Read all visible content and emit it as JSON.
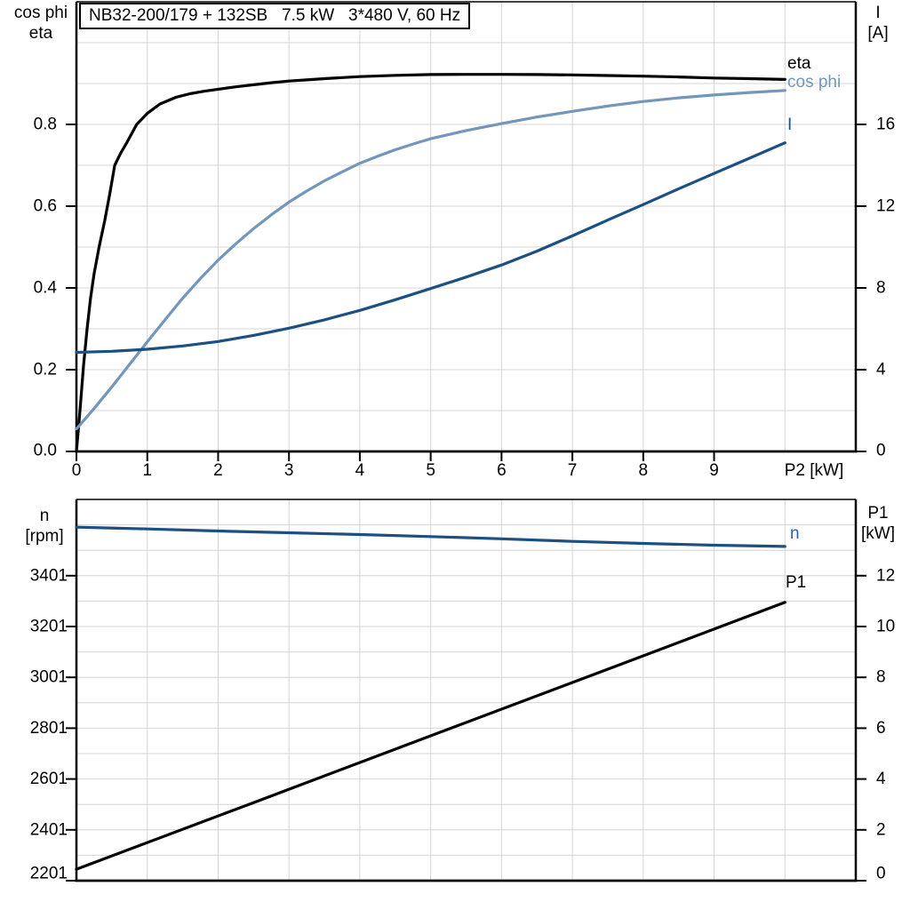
{
  "title_box": {
    "text": "NB32-200/179 + 132SB   7.5 kW   3*480 V, 60 Hz"
  },
  "corner_labels": {
    "top_left": [
      "cos phi",
      "eta"
    ],
    "top_right": [
      "I",
      "[A]"
    ],
    "bottom_left": [
      "n",
      "[rpm]"
    ],
    "bottom_right": [
      "P1",
      "[kW]"
    ]
  },
  "colors": {
    "eta": "#000000",
    "cos_phi": "#7396BA",
    "current": "#1C5082",
    "n_curve": "#1C5082",
    "n_label": "#2363A8",
    "p1": "#000000",
    "grid": "#D4D4D4",
    "axis": "#000000"
  },
  "chart_data": [
    {
      "type": "line",
      "title": "NB32-200/179 + 132SB   7.5 kW   3*480 V, 60 Hz",
      "x_axis": {
        "label": "P2 [kW]",
        "min": 0,
        "max": 11,
        "tick_values": [
          0,
          1,
          2,
          3,
          4,
          5,
          6,
          7,
          8,
          9
        ],
        "tick_labels": [
          "0",
          "1",
          "2",
          "3",
          "4",
          "5",
          "6",
          "7",
          "8",
          "9"
        ],
        "grid_values": [
          1,
          2,
          3,
          4,
          5,
          6,
          7,
          8,
          9,
          10
        ]
      },
      "y_left": {
        "label": "cos phi / eta",
        "min": 0,
        "max": 1.1,
        "tick_values": [
          0,
          0.2,
          0.4,
          0.6,
          0.8
        ],
        "tick_labels": [
          "0.0",
          "0.2",
          "0.4",
          "0.6",
          "0.8"
        ],
        "grid_values": [
          0.1,
          0.2,
          0.3,
          0.4,
          0.5,
          0.6,
          0.7,
          0.8,
          0.9,
          1.0
        ]
      },
      "y_right": {
        "label": "I [A]",
        "min": 0,
        "max": 22,
        "tick_values": [
          0,
          4,
          8,
          12,
          16
        ],
        "tick_labels": [
          "0",
          "4",
          "8",
          "12",
          "16"
        ]
      },
      "series": [
        {
          "name": "eta",
          "axis": "y_left",
          "color": "#000000",
          "points": [
            [
              0,
              0
            ],
            [
              0.05,
              0.1
            ],
            [
              0.1,
              0.21
            ],
            [
              0.15,
              0.3
            ],
            [
              0.2,
              0.375
            ],
            [
              0.25,
              0.435
            ],
            [
              0.32,
              0.5
            ],
            [
              0.4,
              0.565
            ],
            [
              0.47,
              0.63
            ],
            [
              0.54,
              0.7
            ],
            [
              0.62,
              0.728
            ],
            [
              0.7,
              0.752
            ],
            [
              0.85,
              0.8
            ],
            [
              1.0,
              0.827
            ],
            [
              1.18,
              0.85
            ],
            [
              1.4,
              0.866
            ],
            [
              1.6,
              0.875
            ],
            [
              1.8,
              0.881
            ],
            [
              2.0,
              0.886
            ],
            [
              2.25,
              0.892
            ],
            [
              2.5,
              0.897
            ],
            [
              2.75,
              0.902
            ],
            [
              3.0,
              0.906
            ],
            [
              3.25,
              0.909
            ],
            [
              3.5,
              0.912
            ],
            [
              4.0,
              0.917
            ],
            [
              4.5,
              0.92
            ],
            [
              5.0,
              0.922
            ],
            [
              5.5,
              0.9225
            ],
            [
              6.0,
              0.9225
            ],
            [
              6.5,
              0.922
            ],
            [
              7.0,
              0.921
            ],
            [
              7.5,
              0.9195
            ],
            [
              8.0,
              0.918
            ],
            [
              8.5,
              0.916
            ],
            [
              9.0,
              0.9135
            ],
            [
              9.5,
              0.912
            ],
            [
              10.0,
              0.91
            ]
          ]
        },
        {
          "name": "cos phi",
          "axis": "y_left",
          "color": "#7396BA",
          "points": [
            [
              0,
              0.055
            ],
            [
              0.25,
              0.105
            ],
            [
              0.5,
              0.158
            ],
            [
              0.75,
              0.213
            ],
            [
              1.0,
              0.268
            ],
            [
              1.25,
              0.322
            ],
            [
              1.5,
              0.375
            ],
            [
              1.75,
              0.423
            ],
            [
              2.0,
              0.468
            ],
            [
              2.25,
              0.508
            ],
            [
              2.5,
              0.545
            ],
            [
              2.75,
              0.579
            ],
            [
              3.0,
              0.61
            ],
            [
              3.25,
              0.637
            ],
            [
              3.5,
              0.662
            ],
            [
              3.75,
              0.684
            ],
            [
              4.0,
              0.705
            ],
            [
              4.25,
              0.722
            ],
            [
              4.5,
              0.738
            ],
            [
              4.75,
              0.752
            ],
            [
              5.0,
              0.765
            ],
            [
              5.5,
              0.785
            ],
            [
              6.0,
              0.802
            ],
            [
              6.5,
              0.818
            ],
            [
              7.0,
              0.832
            ],
            [
              7.5,
              0.845
            ],
            [
              8.0,
              0.856
            ],
            [
              8.5,
              0.865
            ],
            [
              9.0,
              0.872
            ],
            [
              9.5,
              0.878
            ],
            [
              10.0,
              0.883
            ]
          ]
        },
        {
          "name": "I",
          "axis": "y_right",
          "color": "#1C5082",
          "points": [
            [
              0,
              4.85
            ],
            [
              0.5,
              4.9
            ],
            [
              1.0,
              5.0
            ],
            [
              1.5,
              5.16
            ],
            [
              2.0,
              5.38
            ],
            [
              2.5,
              5.68
            ],
            [
              3.0,
              6.03
            ],
            [
              3.5,
              6.44
            ],
            [
              4.0,
              6.9
            ],
            [
              4.5,
              7.42
            ],
            [
              5.0,
              7.97
            ],
            [
              5.5,
              8.53
            ],
            [
              6.0,
              9.12
            ],
            [
              6.5,
              9.8
            ],
            [
              7.0,
              10.55
            ],
            [
              7.5,
              11.32
            ],
            [
              8.0,
              12.08
            ],
            [
              8.5,
              12.85
            ],
            [
              9.0,
              13.6
            ],
            [
              9.5,
              14.35
            ],
            [
              10.0,
              15.1
            ]
          ]
        }
      ]
    },
    {
      "type": "line",
      "title": "",
      "x_axis": {
        "label": "",
        "min": 0,
        "max": 11,
        "tick_values": [],
        "tick_labels": [],
        "grid_values": [
          1,
          2,
          3,
          4,
          5,
          6,
          7,
          8,
          9,
          10
        ]
      },
      "y_left": {
        "label": "n [rpm]",
        "min": 2201,
        "max": 3701,
        "tick_values": [
          2201,
          2401,
          2601,
          2801,
          3001,
          3201,
          3401
        ],
        "tick_labels": [
          "2201",
          "2401",
          "2601",
          "2801",
          "3001",
          "3201",
          "3401"
        ],
        "grid_values": [
          2301,
          2401,
          2501,
          2601,
          2701,
          2801,
          2901,
          3001,
          3101,
          3201,
          3301,
          3401,
          3501,
          3601
        ]
      },
      "y_right": {
        "label": "P1 [kW]",
        "min": 0,
        "max": 15,
        "tick_values": [
          0,
          2,
          4,
          6,
          8,
          10,
          12
        ],
        "tick_labels": [
          "0",
          "2",
          "4",
          "6",
          "8",
          "10",
          "12"
        ]
      },
      "series": [
        {
          "name": "n",
          "axis": "y_left",
          "color": "#1C5082",
          "label_color": "#2363A8",
          "points": [
            [
              0,
              3592
            ],
            [
              1,
              3585
            ],
            [
              2,
              3577
            ],
            [
              3,
              3570
            ],
            [
              4,
              3563
            ],
            [
              5,
              3555
            ],
            [
              6,
              3546
            ],
            [
              7,
              3536
            ],
            [
              8,
              3528
            ],
            [
              9,
              3521
            ],
            [
              10,
              3516
            ]
          ]
        },
        {
          "name": "P1",
          "axis": "y_right",
          "color": "#000000",
          "points": [
            [
              0,
              0.45
            ],
            [
              2.5,
              3.07
            ],
            [
              5,
              5.7
            ],
            [
              7.5,
              8.32
            ],
            [
              10,
              10.95
            ]
          ]
        }
      ]
    }
  ]
}
